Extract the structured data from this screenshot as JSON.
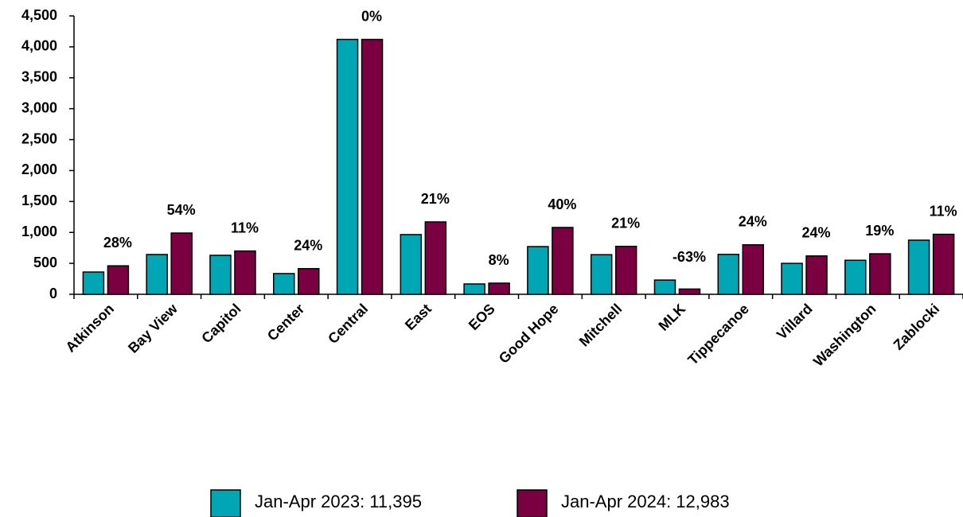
{
  "chart_data": {
    "type": "bar",
    "categories": [
      "Atkinson",
      "Bay View",
      "Capitol",
      "Center",
      "Central",
      "East",
      "EOS",
      "Good Hope",
      "Mitchell",
      "MLK",
      "Tippecanoe",
      "Villard",
      "Washington",
      "Zablocki"
    ],
    "series": [
      {
        "name": "Jan-Apr 2023: 11,395",
        "color": "#00a6b4",
        "values": [
          360,
          643,
          630,
          335,
          4120,
          965,
          167,
          771,
          640,
          230,
          645,
          500,
          550,
          875
        ]
      },
      {
        "name": "Jan-Apr 2024: 12,983",
        "color": "#7b0041",
        "values": [
          460,
          990,
          700,
          415,
          4120,
          1170,
          180,
          1080,
          775,
          85,
          800,
          620,
          655,
          970
        ]
      }
    ],
    "change_labels": [
      "28%",
      "54%",
      "11%",
      "24%",
      "0%",
      "21%",
      "8%",
      "40%",
      "21%",
      "-63%",
      "24%",
      "24%",
      "19%",
      "11%"
    ],
    "ylim": [
      0,
      4500
    ],
    "yticks": [
      0,
      {
        "value": 500,
        "label": "500"
      },
      {
        "value": 1000,
        "label": "1,000"
      },
      {
        "value": 1500,
        "label": "1,500"
      },
      {
        "value": 2000,
        "label": "2,000"
      },
      {
        "value": 2500,
        "label": "2,500"
      },
      {
        "value": 3000,
        "label": "3,000"
      },
      {
        "value": 3500,
        "label": "3,500"
      },
      {
        "value": 4000,
        "label": "4,000"
      },
      {
        "value": 4500,
        "label": "4,500"
      }
    ],
    "legend": "bottom"
  }
}
